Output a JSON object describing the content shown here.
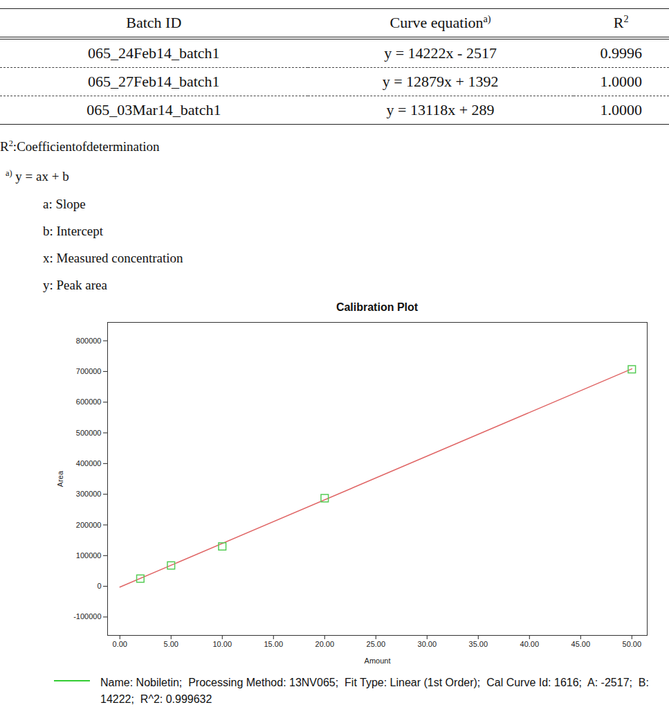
{
  "table": {
    "header": [
      {
        "text": "Batch ID"
      },
      {
        "text": "Curve equation",
        "sup": "a)"
      },
      {
        "text": "R",
        "sup": "2"
      }
    ],
    "rows": [
      [
        "065_24Feb14_batch1",
        "y = 14222x - 2517",
        "0.9996"
      ],
      [
        "065_27Feb14_batch1",
        "y = 12879x + 1392",
        "1.0000"
      ],
      [
        "065_03Mar14_batch1",
        "y = 13118x + 289",
        "1.0000"
      ]
    ]
  },
  "notes": {
    "r2": {
      "text": "R",
      "sup": "2",
      "rest": ":Coefficientofdetermination"
    },
    "footnote": {
      "sup": "a)",
      "text": "y = ax + b"
    },
    "items": [
      "a: Slope",
      "b: Intercept",
      "x: Measured concentration",
      "y: Peak area"
    ]
  },
  "chart_data": {
    "type": "scatter",
    "title": "Calibration Plot",
    "x_label": "Amount",
    "y_label": "Area",
    "grid": false,
    "xlim": [
      -1.2,
      51.5
    ],
    "xticks": [
      {
        "value": 0,
        "label": "0.00"
      },
      {
        "value": 5,
        "label": "5.00"
      },
      {
        "value": 10,
        "label": "10.00"
      },
      {
        "value": 15,
        "label": "15.00"
      },
      {
        "value": 20,
        "label": "20.00"
      },
      {
        "value": 25,
        "label": "25.00"
      },
      {
        "value": 30,
        "label": "30.00"
      },
      {
        "value": 35,
        "label": "35.00"
      },
      {
        "value": 40,
        "label": "40.00"
      },
      {
        "value": 45,
        "label": "45.00"
      },
      {
        "value": 50,
        "label": "50.00"
      }
    ],
    "ylim": [
      -160000,
      860000
    ],
    "yticks": [
      -100000,
      0,
      100000,
      200000,
      300000,
      400000,
      500000,
      600000,
      700000,
      800000
    ],
    "series": [
      {
        "type": "line",
        "color": "#e06666",
        "line_style": "solid",
        "x": [
          0,
          50
        ],
        "values": [
          -2517,
          708583
        ]
      },
      {
        "type": "scatter",
        "color": "#55cc55",
        "marker": "square",
        "x": [
          2,
          5,
          10,
          20,
          50
        ],
        "values": [
          25000,
          68000,
          130000,
          287000,
          707000
        ]
      }
    ],
    "caption": {
      "text": "Name: Nobiletin;  Processing Method: 13NV065;  Fit Type: Linear (1st Order);  Cal Curve Id: 1616;  A: -2517;  B: 14222;  R^2: 0.999632",
      "color": "#33cc33"
    }
  }
}
